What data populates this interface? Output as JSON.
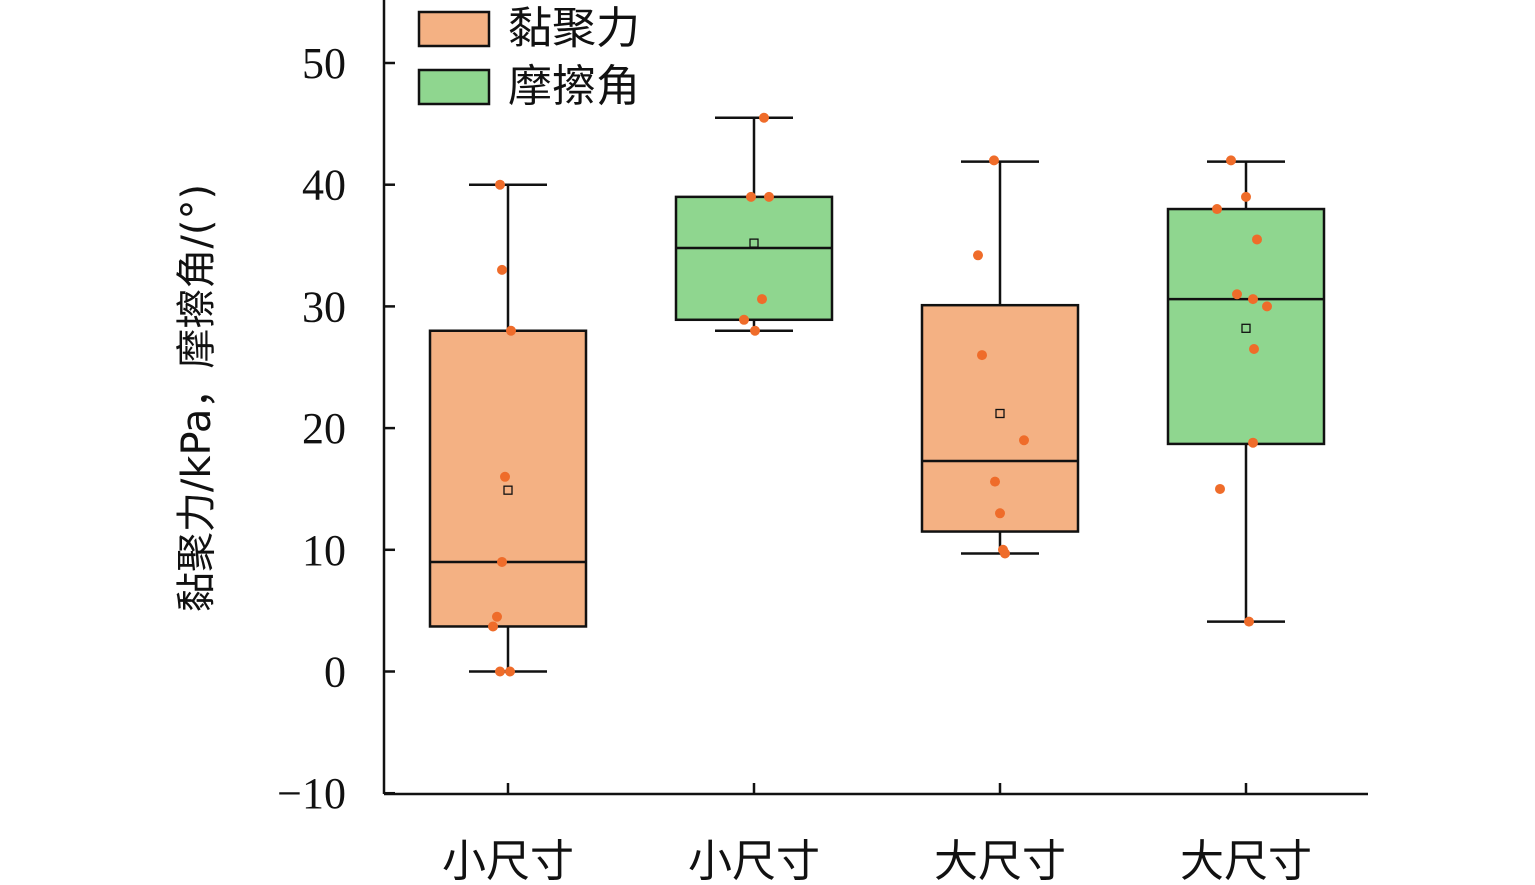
{
  "chart_data": {
    "type": "box",
    "ylabel": "黏聚力/kPa，摩擦角/(°)",
    "ylim": [
      -10,
      55
    ],
    "yticks": [
      -10,
      0,
      10,
      20,
      30,
      40,
      50
    ],
    "categories": [
      "小尺寸",
      "小尺寸",
      "大尺寸",
      "大尺寸"
    ],
    "legend": {
      "position": "top-left",
      "entries": [
        {
          "label": "黏聚力",
          "color": "#f4b183"
        },
        {
          "label": "摩擦角",
          "color": "#8fd68f"
        }
      ]
    },
    "boxes": [
      {
        "category": "小尺寸",
        "series": "黏聚力",
        "whisker_low": 0,
        "q1": 3.7,
        "median": 9.0,
        "q3": 28.0,
        "whisker_high": 40.0,
        "mean": 14.9,
        "points": [
          40.0,
          33.0,
          28.0,
          16.0,
          9.0,
          4.5,
          3.7,
          0,
          0
        ]
      },
      {
        "category": "小尺寸",
        "series": "摩擦角",
        "whisker_low": 28.0,
        "q1": 28.9,
        "median": 34.8,
        "q3": 39.0,
        "whisker_high": 45.5,
        "mean": 35.2,
        "points": [
          45.5,
          39.0,
          39.0,
          30.6,
          28.9,
          28.0
        ]
      },
      {
        "category": "大尺寸",
        "series": "黏聚力",
        "whisker_low": 9.7,
        "q1": 11.5,
        "median": 17.3,
        "q3": 30.1,
        "whisker_high": 41.9,
        "mean": 21.2,
        "points": [
          42.0,
          34.2,
          26.0,
          19.0,
          15.6,
          13.0,
          10.0,
          9.7
        ]
      },
      {
        "category": "大尺寸",
        "series": "摩擦角",
        "whisker_low": 4.1,
        "q1": 18.7,
        "median": 30.6,
        "q3": 38.0,
        "whisker_high": 41.9,
        "mean": 28.2,
        "points": [
          42.0,
          39.0,
          38.0,
          35.5,
          31.0,
          30.6,
          30.0,
          26.5,
          18.8,
          15.0,
          4.1
        ]
      }
    ],
    "colors": {
      "point": "#ef6c2a",
      "outline": "#111111"
    }
  }
}
